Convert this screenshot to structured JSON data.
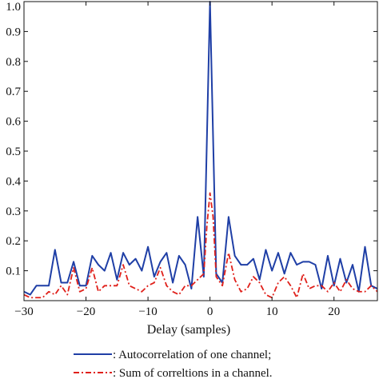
{
  "chart_data": {
    "type": "line",
    "xlabel": "Delay (samples)",
    "ylabel": "",
    "xlim": [
      -30,
      27
    ],
    "ylim": [
      0,
      1.0
    ],
    "x_ticks": [
      -30,
      -20,
      -10,
      0,
      10,
      20
    ],
    "x_tick_labels": [
      "−30",
      "−20",
      "−10",
      "0",
      "10",
      "20"
    ],
    "y_ticks": [
      0.1,
      0.2,
      0.3,
      0.4,
      0.5,
      0.6,
      0.7,
      0.8,
      0.9,
      1.0
    ],
    "y_tick_labels": [
      "0.1",
      "0.2",
      "0.3",
      "0.4",
      "0.5",
      "0.6",
      "0.7",
      "0.8",
      "0.9",
      "1.0"
    ],
    "grid": false,
    "legend_position": "bottom",
    "series": [
      {
        "name": ": Autocorrelation of one channel;",
        "color": "#1f3fa6",
        "style": "solid",
        "x": [
          -30,
          -29,
          -28,
          -27,
          -26,
          -25,
          -24,
          -23,
          -22,
          -21,
          -20,
          -19,
          -18,
          -17,
          -16,
          -15,
          -14,
          -13,
          -12,
          -11,
          -10,
          -9,
          -8,
          -7,
          -6,
          -5,
          -4,
          -3,
          -2,
          -1,
          0,
          1,
          2,
          3,
          4,
          5,
          6,
          7,
          8,
          9,
          10,
          11,
          12,
          13,
          14,
          15,
          16,
          17,
          18,
          19,
          20,
          21,
          22,
          23,
          24,
          25,
          26,
          27
        ],
        "y": [
          0.03,
          0.02,
          0.05,
          0.05,
          0.05,
          0.17,
          0.06,
          0.06,
          0.13,
          0.05,
          0.05,
          0.15,
          0.12,
          0.1,
          0.16,
          0.07,
          0.16,
          0.12,
          0.14,
          0.1,
          0.18,
          0.08,
          0.13,
          0.16,
          0.06,
          0.15,
          0.12,
          0.04,
          0.28,
          0.08,
          1.0,
          0.09,
          0.06,
          0.28,
          0.15,
          0.12,
          0.12,
          0.14,
          0.07,
          0.17,
          0.1,
          0.16,
          0.09,
          0.16,
          0.12,
          0.13,
          0.13,
          0.12,
          0.04,
          0.15,
          0.05,
          0.14,
          0.06,
          0.12,
          0.03,
          0.18,
          0.05,
          0.04
        ]
      },
      {
        "name": ": Sum of correltions in a channel.",
        "color": "#e0201a",
        "style": "dashdot",
        "x": [
          -30,
          -29,
          -28,
          -27,
          -26,
          -25,
          -24,
          -23,
          -22,
          -21,
          -20,
          -19,
          -18,
          -17,
          -16,
          -15,
          -14,
          -13,
          -12,
          -11,
          -10,
          -9,
          -8,
          -7,
          -6,
          -5,
          -4,
          -3,
          -2,
          -1,
          -0.5,
          0,
          0.5,
          1,
          2,
          3,
          4,
          5,
          6,
          7,
          8,
          9,
          10,
          11,
          12,
          13,
          14,
          15,
          16,
          17,
          18,
          19,
          20,
          21,
          22,
          23,
          24,
          25,
          26,
          27
        ],
        "y": [
          0.02,
          0.01,
          0.01,
          0.01,
          0.03,
          0.02,
          0.05,
          0.02,
          0.11,
          0.03,
          0.04,
          0.11,
          0.03,
          0.05,
          0.05,
          0.05,
          0.12,
          0.05,
          0.04,
          0.03,
          0.05,
          0.06,
          0.11,
          0.05,
          0.03,
          0.02,
          0.05,
          0.05,
          0.07,
          0.09,
          0.25,
          0.36,
          0.28,
          0.08,
          0.05,
          0.16,
          0.07,
          0.03,
          0.04,
          0.08,
          0.06,
          0.02,
          0.01,
          0.06,
          0.08,
          0.05,
          0.01,
          0.09,
          0.04,
          0.05,
          0.05,
          0.03,
          0.06,
          0.03,
          0.07,
          0.04,
          0.03,
          0.03,
          0.05,
          0.03
        ]
      }
    ]
  }
}
